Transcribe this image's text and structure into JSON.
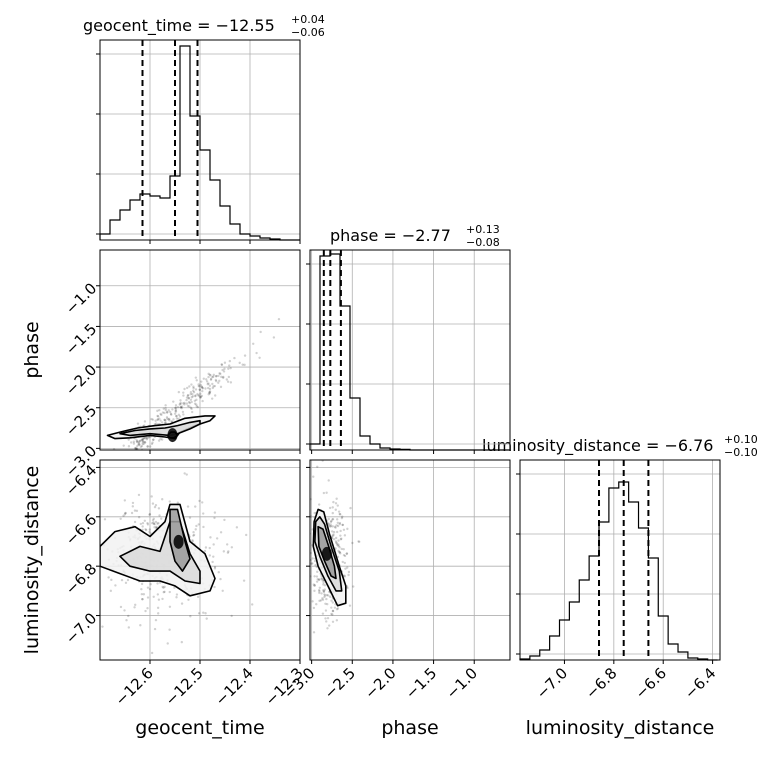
{
  "chart_data": {
    "type": "corner",
    "parameters": [
      "geocent_time",
      "phase",
      "luminosity_distance"
    ],
    "axis_labels": [
      "geocent_time",
      "phase",
      "luminosity_distance"
    ],
    "titles": {
      "geocent_time": {
        "prefix": "geocent_time = ",
        "median": "−12.55",
        "plus": "+0.04",
        "minus": "−0.06"
      },
      "phase": {
        "prefix": "phase = ",
        "median": "−2.77",
        "plus": "+0.13",
        "minus": "−0.08"
      },
      "luminosity_distance": {
        "prefix": "luminosity_distance = ",
        "median": "−6.76",
        "plus": "+0.10",
        "minus": "−0.10"
      }
    },
    "ranges": {
      "geocent_time": [
        -12.7,
        -12.3
      ],
      "phase": [
        -3.02,
        -0.56
      ],
      "luminosity_distance": [
        -7.18,
        -6.37
      ]
    },
    "ticks": {
      "geocent_time": {
        "values": [
          -12.6,
          -12.5,
          -12.4,
          -12.3
        ],
        "labels": [
          "−12.6",
          "−12.5",
          "−12.4",
          "−12.3"
        ]
      },
      "phase": {
        "values": [
          -3.0,
          -2.5,
          -2.0,
          -1.5,
          -1.0
        ],
        "labels": [
          "−3.0",
          "−2.5",
          "−2.0",
          "−1.5",
          "−1.0"
        ]
      },
      "luminosity_distance": {
        "values": [
          -7.0,
          -6.8,
          -6.6,
          -6.4
        ],
        "labels": [
          "−7.0",
          "−6.8",
          "−6.6",
          "−6.4"
        ]
      }
    },
    "quantiles": {
      "geocent_time": [
        -12.615,
        -12.55,
        -12.505
      ],
      "phase": [
        -2.85,
        -2.77,
        -2.64
      ],
      "luminosity_distance": [
        -6.86,
        -6.76,
        -6.66
      ]
    },
    "histograms": {
      "geocent_time": {
        "bin_width": 0.02,
        "edges_start": -12.7,
        "counts": [
          0.03,
          0.1,
          0.15,
          0.2,
          0.23,
          0.22,
          0.21,
          0.32,
          0.97,
          0.62,
          0.45,
          0.3,
          0.17,
          0.08,
          0.03,
          0.02,
          0.01,
          0.005,
          0,
          0
        ]
      },
      "phase": {
        "bin_width": 0.123,
        "edges_start": -3.02,
        "counts": [
          0.03,
          0.97,
          0.98,
          0.72,
          0.26,
          0.07,
          0.03,
          0.01,
          0.005,
          0.003,
          0,
          0,
          0,
          0,
          0,
          0,
          0,
          0,
          0,
          0
        ]
      },
      "luminosity_distance": {
        "bin_width": 0.04,
        "edges_start": -7.18,
        "counts": [
          0.005,
          0.02,
          0.05,
          0.12,
          0.2,
          0.29,
          0.4,
          0.52,
          0.69,
          0.86,
          0.89,
          0.79,
          0.66,
          0.51,
          0.22,
          0.08,
          0.04,
          0.01,
          0.005,
          0
        ]
      },
      "ylim": [
        0,
        1.0
      ],
      "yticks": [
        0.03,
        0.33,
        0.63,
        0.93
      ]
    },
    "contours": {
      "geocent_time_vs_phase": {
        "centers": [
          [
            -12.555,
            -2.83
          ],
          [
            -12.635,
            -2.78
          ],
          [
            -12.53,
            -2.73
          ]
        ],
        "levels": [
          [
            [
              -12.685,
              -2.84
            ],
            [
              -12.66,
              -2.8
            ],
            [
              -12.625,
              -2.75
            ],
            [
              -12.59,
              -2.72
            ],
            [
              -12.56,
              -2.7
            ],
            [
              -12.53,
              -2.63
            ],
            [
              -12.49,
              -2.6
            ],
            [
              -12.47,
              -2.6
            ],
            [
              -12.48,
              -2.66
            ],
            [
              -12.51,
              -2.72
            ],
            [
              -12.54,
              -2.8
            ],
            [
              -12.55,
              -2.88
            ],
            [
              -12.57,
              -2.86
            ],
            [
              -12.6,
              -2.84
            ],
            [
              -12.64,
              -2.87
            ],
            [
              -12.67,
              -2.88
            ]
          ],
          [
            [
              -12.66,
              -2.82
            ],
            [
              -12.63,
              -2.78
            ],
            [
              -12.6,
              -2.76
            ],
            [
              -12.57,
              -2.75
            ],
            [
              -12.545,
              -2.72
            ],
            [
              -12.52,
              -2.68
            ],
            [
              -12.5,
              -2.66
            ],
            [
              -12.5,
              -2.7
            ],
            [
              -12.52,
              -2.76
            ],
            [
              -12.545,
              -2.82
            ],
            [
              -12.56,
              -2.84
            ],
            [
              -12.6,
              -2.82
            ],
            [
              -12.64,
              -2.84
            ]
          ],
          [
            [
              -12.565,
              -2.84
            ],
            [
              -12.558,
              -2.8
            ],
            [
              -12.55,
              -2.8
            ],
            [
              -12.545,
              -2.84
            ],
            [
              -12.552,
              -2.87
            ],
            [
              -12.56,
              -2.87
            ]
          ]
        ]
      },
      "geocent_time_vs_luminosity_distance": {
        "levels": [
          [
            [
              -12.7,
              -6.72
            ],
            [
              -12.67,
              -6.66
            ],
            [
              -12.63,
              -6.64
            ],
            [
              -12.6,
              -6.68
            ],
            [
              -12.57,
              -6.62
            ],
            [
              -12.56,
              -6.55
            ],
            [
              -12.54,
              -6.55
            ],
            [
              -12.52,
              -6.7
            ],
            [
              -12.49,
              -6.75
            ],
            [
              -12.47,
              -6.85
            ],
            [
              -12.48,
              -6.9
            ],
            [
              -12.52,
              -6.92
            ],
            [
              -12.55,
              -6.88
            ],
            [
              -12.58,
              -6.86
            ],
            [
              -12.62,
              -6.86
            ],
            [
              -12.66,
              -6.83
            ],
            [
              -12.7,
              -6.8
            ]
          ],
          [
            [
              -12.66,
              -6.76
            ],
            [
              -12.62,
              -6.72
            ],
            [
              -12.58,
              -6.74
            ],
            [
              -12.56,
              -6.62
            ],
            [
              -12.54,
              -6.62
            ],
            [
              -12.52,
              -6.75
            ],
            [
              -12.5,
              -6.82
            ],
            [
              -12.5,
              -6.87
            ],
            [
              -12.53,
              -6.86
            ],
            [
              -12.56,
              -6.82
            ],
            [
              -12.6,
              -6.82
            ],
            [
              -12.64,
              -6.8
            ]
          ],
          [
            [
              -12.56,
              -6.57
            ],
            [
              -12.545,
              -6.57
            ],
            [
              -12.53,
              -6.7
            ],
            [
              -12.52,
              -6.77
            ],
            [
              -12.535,
              -6.82
            ],
            [
              -12.55,
              -6.78
            ],
            [
              -12.56,
              -6.7
            ]
          ]
        ]
      },
      "phase_vs_luminosity_distance": {
        "levels": [
          [
            [
              -2.97,
              -6.62
            ],
            [
              -2.92,
              -6.57
            ],
            [
              -2.85,
              -6.58
            ],
            [
              -2.78,
              -6.67
            ],
            [
              -2.66,
              -6.8
            ],
            [
              -2.58,
              -6.88
            ],
            [
              -2.58,
              -6.95
            ],
            [
              -2.68,
              -6.96
            ],
            [
              -2.8,
              -6.88
            ],
            [
              -2.92,
              -6.8
            ],
            [
              -2.98,
              -6.72
            ]
          ],
          [
            [
              -2.95,
              -6.62
            ],
            [
              -2.9,
              -6.6
            ],
            [
              -2.84,
              -6.63
            ],
            [
              -2.76,
              -6.72
            ],
            [
              -2.66,
              -6.82
            ],
            [
              -2.63,
              -6.9
            ],
            [
              -2.7,
              -6.9
            ],
            [
              -2.8,
              -6.84
            ],
            [
              -2.9,
              -6.76
            ],
            [
              -2.96,
              -6.7
            ]
          ],
          [
            [
              -2.92,
              -6.64
            ],
            [
              -2.86,
              -6.65
            ],
            [
              -2.79,
              -6.72
            ],
            [
              -2.72,
              -6.8
            ],
            [
              -2.7,
              -6.85
            ],
            [
              -2.76,
              -6.84
            ],
            [
              -2.84,
              -6.78
            ],
            [
              -2.91,
              -6.72
            ]
          ]
        ]
      }
    },
    "grid": true
  }
}
